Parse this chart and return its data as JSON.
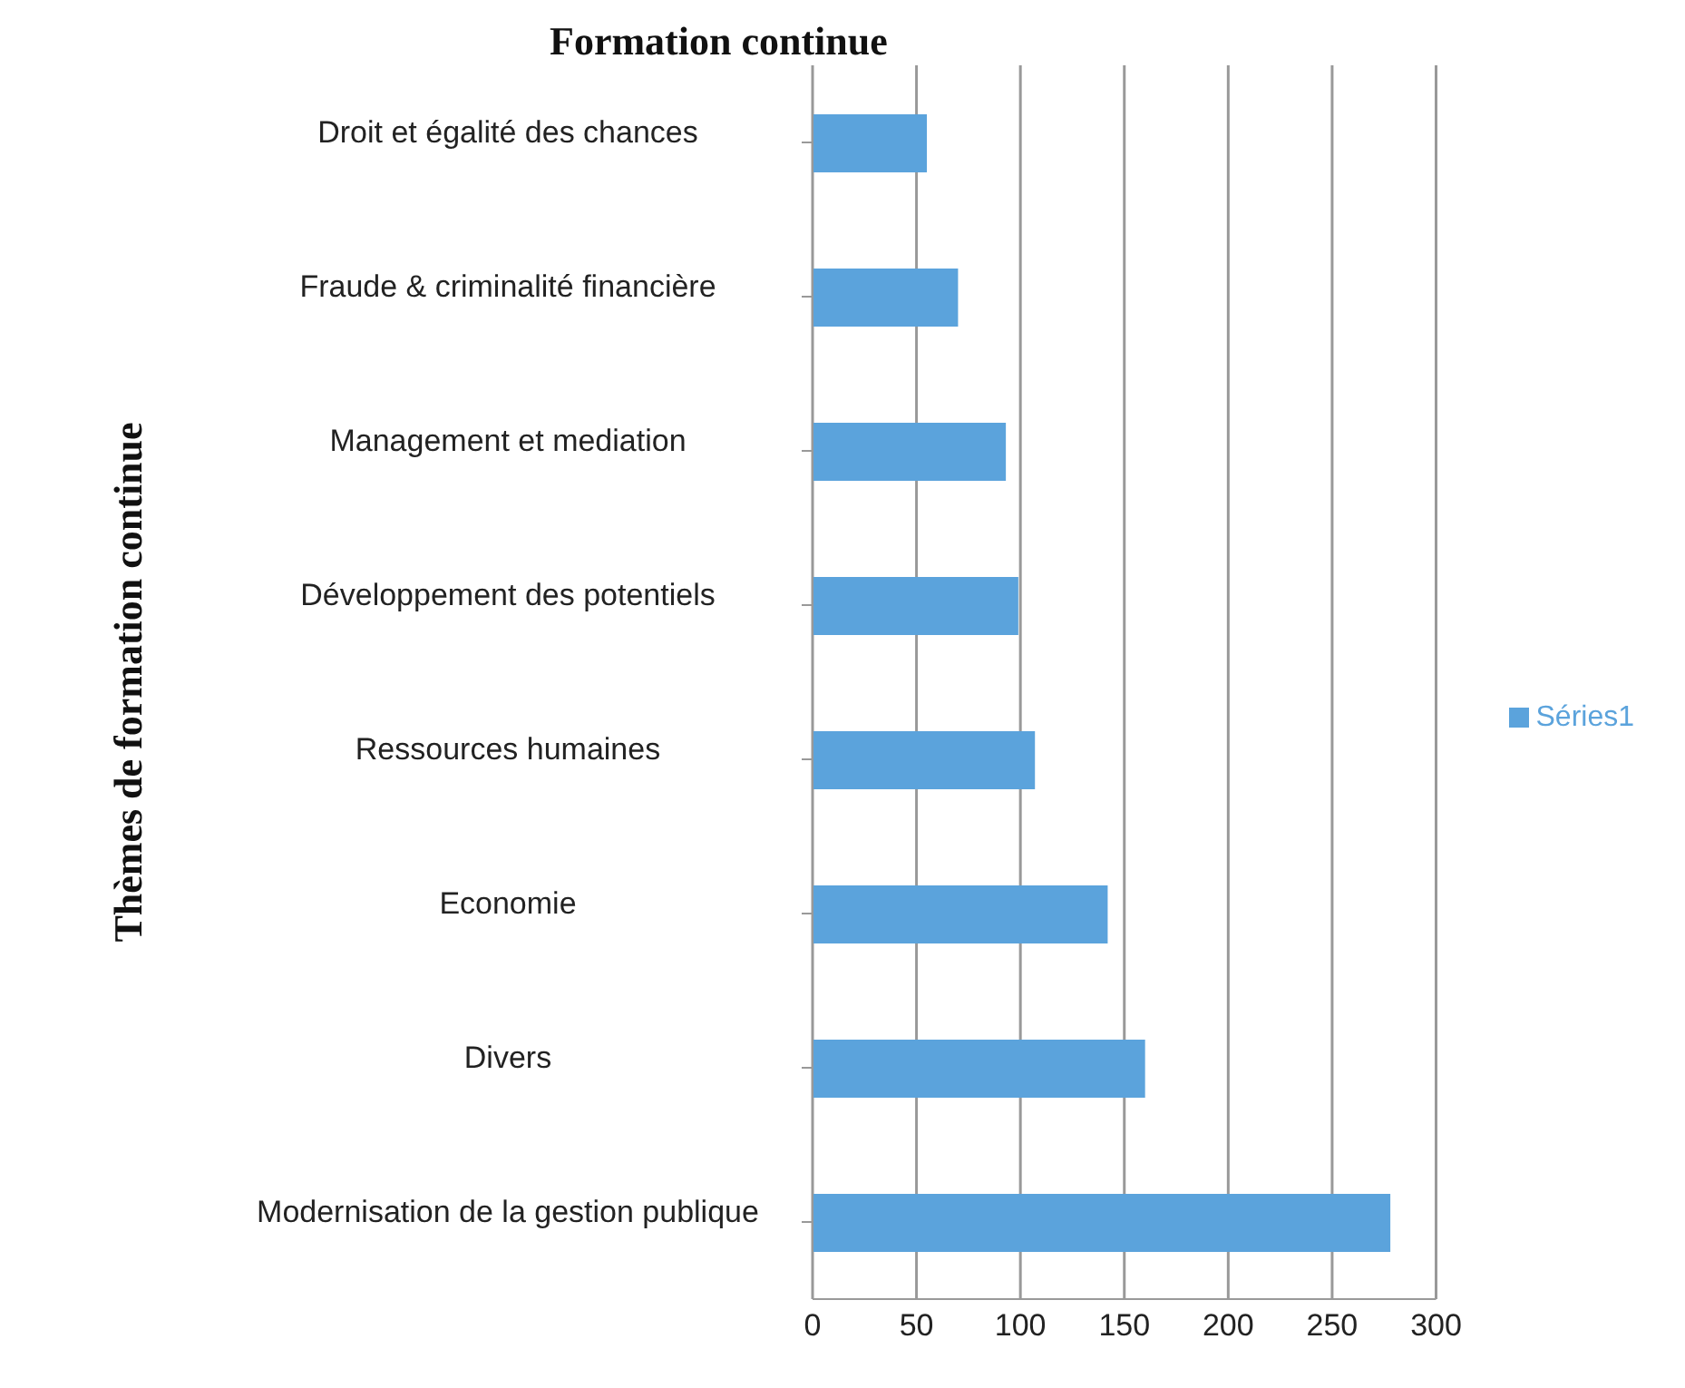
{
  "chart_data": {
    "type": "bar",
    "orientation": "horizontal",
    "title": "Formation continue",
    "ylabel": "Thèmes de formation continue",
    "categories": [
      "Droit et égalité des chances",
      "Fraude & criminalité financière",
      "Management et mediation",
      "Développement des potentiels",
      "Ressources humaines",
      "Economie",
      "Divers",
      "Modernisation de la gestion publique"
    ],
    "series": [
      {
        "name": "Séries1",
        "color": "#5ba3dc",
        "values": [
          55,
          70,
          93,
          99,
          107,
          142,
          160,
          278
        ]
      }
    ],
    "xlim": [
      0,
      300
    ],
    "xticks": [
      0,
      50,
      100,
      150,
      200,
      250,
      300
    ],
    "grid": "x",
    "legend": "right"
  }
}
